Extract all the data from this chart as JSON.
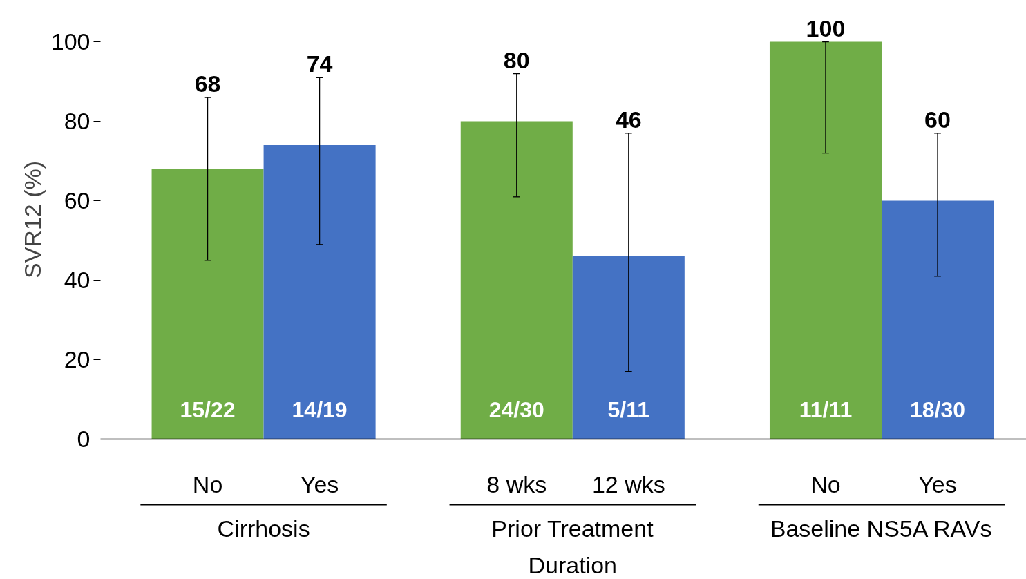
{
  "chart_data": {
    "type": "bar",
    "ylabel": "SVR12 (%)",
    "categories": [
      "No",
      "Yes",
      "8 wks",
      "12 wks",
      "No",
      "Yes"
    ],
    "values": [
      68,
      74,
      80,
      46,
      100,
      60
    ],
    "colors": [
      "#70ad47",
      "#4472c4",
      "#70ad47",
      "#4472c4",
      "#70ad47",
      "#4472c4"
    ],
    "errors": [
      [
        45,
        86
      ],
      [
        49,
        91
      ],
      [
        61,
        92
      ],
      [
        17,
        77
      ],
      [
        72,
        100
      ],
      [
        41,
        77
      ]
    ],
    "value_labels": [
      "68",
      "74",
      "80",
      null,
      "100",
      "60"
    ],
    "annotations": [
      "15/22",
      "14/19",
      "24/30",
      "5/11",
      "11/11",
      "18/30",
      "Cirrhosis",
      "Prior Treatment Duration",
      "Baseline NS5A RAVs",
      "46"
    ],
    "ylim": [
      0,
      100
    ],
    "yticks": [
      0,
      20,
      40,
      60,
      80,
      100
    ],
    "grid": false
  }
}
